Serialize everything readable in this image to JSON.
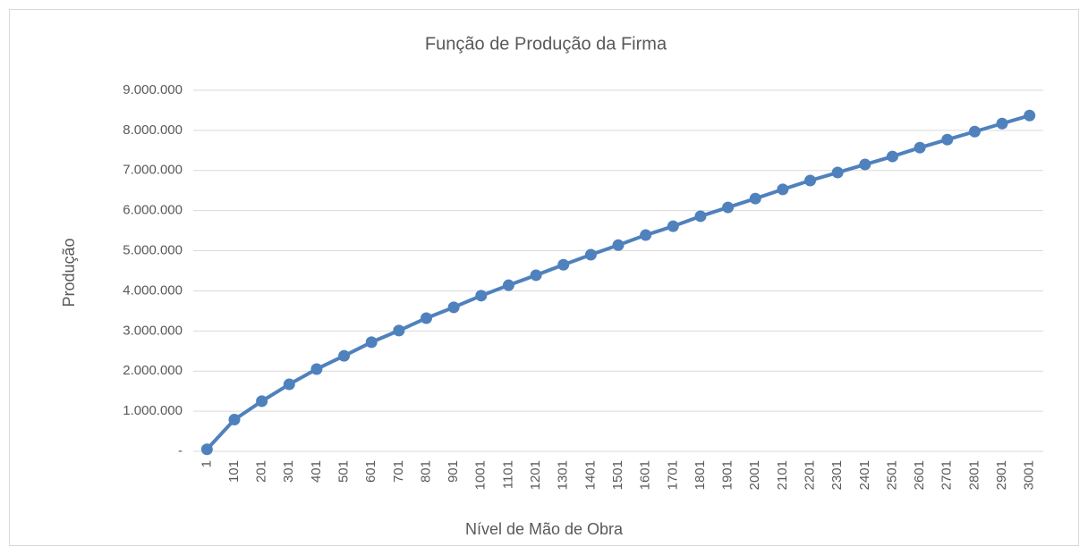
{
  "chart_data": {
    "type": "line",
    "title": "Função de Produção da Firma",
    "x_label": "Nível de Mão de Obra",
    "y_label": "Produção",
    "categories": [
      "1",
      "101",
      "201",
      "301",
      "401",
      "501",
      "601",
      "701",
      "801",
      "901",
      "1001",
      "1101",
      "1201",
      "1301",
      "1401",
      "1501",
      "1601",
      "1701",
      "1801",
      "1901",
      "2001",
      "2101",
      "2201",
      "2301",
      "2401",
      "2501",
      "2601",
      "2701",
      "2801",
      "2901",
      "3001"
    ],
    "values": [
      50000,
      790000,
      1250000,
      1670000,
      2050000,
      2380000,
      2720000,
      3010000,
      3320000,
      3590000,
      3880000,
      4140000,
      4390000,
      4650000,
      4900000,
      5140000,
      5390000,
      5610000,
      5860000,
      6080000,
      6300000,
      6530000,
      6750000,
      6950000,
      7150000,
      7350000,
      7570000,
      7770000,
      7970000,
      8170000,
      8370000
    ],
    "color": "#4f81bd",
    "ylim": [
      0,
      9000000
    ],
    "yticks": [
      {
        "value": 0,
        "label": "-"
      },
      {
        "value": 1000000,
        "label": "1.000.000"
      },
      {
        "value": 2000000,
        "label": "2.000.000"
      },
      {
        "value": 3000000,
        "label": "3.000.000"
      },
      {
        "value": 4000000,
        "label": "4.000.000"
      },
      {
        "value": 5000000,
        "label": "5.000.000"
      },
      {
        "value": 6000000,
        "label": "6.000.000"
      },
      {
        "value": 7000000,
        "label": "7.000.000"
      },
      {
        "value": 8000000,
        "label": "8.000.000"
      },
      {
        "value": 9000000,
        "label": "9.000.000"
      }
    ],
    "grid": true
  }
}
